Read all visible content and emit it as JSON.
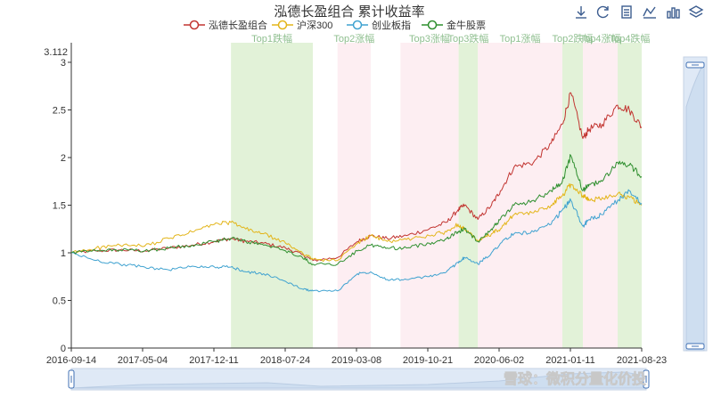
{
  "toolbox": {
    "icons": [
      "download-icon",
      "refresh-icon",
      "data-view-icon",
      "line-type-icon",
      "bar-type-icon",
      "stack-icon"
    ]
  },
  "watermark": "雪球：微积分量化价投",
  "chart_data": {
    "type": "line",
    "title": "泓德长盈组合 累计收益率",
    "legend_placement": "top-center",
    "legend": [
      "泓德长盈组合",
      "沪深300",
      "创业板指",
      "金牛股票"
    ],
    "xlabel": "",
    "ylabel": "",
    "x_range": [
      "2016-09-14",
      "2021-08-23"
    ],
    "x_tick_labels": [
      "2016-09-14",
      "2017-05-04",
      "2017-12-11",
      "2018-07-24",
      "2019-03-08",
      "2019-10-21",
      "2020-06-02",
      "2021-01-11",
      "2021-08-23"
    ],
    "ylim": [
      0,
      3.112
    ],
    "y_ticks": [
      0,
      0.5,
      1,
      1.5,
      2,
      2.5,
      3
    ],
    "y_max_label": "3.112",
    "grid": false,
    "bands": [
      {
        "label": "Top1跌幅",
        "start": "2018-02-01",
        "end": "2018-10-18",
        "color": "#e2f2d8"
      },
      {
        "label": "Top2涨幅",
        "start": "2019-01-04",
        "end": "2019-04-19",
        "color": "#fdeef2"
      },
      {
        "label": "Top3涨幅",
        "start": "2019-07-22",
        "end": "2020-01-22",
        "color": "#fdeef2"
      },
      {
        "label": "Top3跌幅",
        "start": "2020-01-22",
        "end": "2020-03-23",
        "color": "#e2f2d8"
      },
      {
        "label": "Top1涨幅",
        "start": "2020-03-23",
        "end": "2020-12-15",
        "color": "#fdeef2"
      },
      {
        "label": "Top2跌幅",
        "start": "2020-12-15",
        "end": "2021-02-18",
        "color": "#e2f2d8"
      },
      {
        "label": "Top4涨幅",
        "start": "2021-02-18",
        "end": "2021-06-08",
        "color": "#fdeef2"
      },
      {
        "label": "Top4跌幅",
        "start": "2021-06-08",
        "end": "2021-08-23",
        "color": "#e2f2d8"
      }
    ],
    "x": [
      "2016-09-14",
      "2016-12-01",
      "2017-02-15",
      "2017-05-04",
      "2017-07-20",
      "2017-10-01",
      "2017-12-11",
      "2018-02-01",
      "2018-03-20",
      "2018-05-15",
      "2018-07-24",
      "2018-09-15",
      "2018-10-18",
      "2019-01-04",
      "2019-03-08",
      "2019-04-19",
      "2019-06-10",
      "2019-08-10",
      "2019-10-21",
      "2019-12-15",
      "2020-01-20",
      "2020-02-10",
      "2020-03-23",
      "2020-05-05",
      "2020-06-02",
      "2020-07-15",
      "2020-09-15",
      "2020-11-10",
      "2020-12-15",
      "2021-01-11",
      "2021-02-18",
      "2021-03-10",
      "2021-04-20",
      "2021-06-08",
      "2021-07-15",
      "2021-08-23"
    ],
    "series": [
      {
        "name": "泓德长盈组合",
        "color": "#c23531",
        "values": [
          1.0,
          1.02,
          1.03,
          1.02,
          1.05,
          1.08,
          1.12,
          1.15,
          1.12,
          1.1,
          1.05,
          0.98,
          0.92,
          0.95,
          1.12,
          1.18,
          1.15,
          1.18,
          1.25,
          1.32,
          1.45,
          1.5,
          1.35,
          1.5,
          1.65,
          1.9,
          1.95,
          2.15,
          2.35,
          2.68,
          2.2,
          2.3,
          2.35,
          2.55,
          2.5,
          2.32
        ]
      },
      {
        "name": "沪深300",
        "color": "#e3b51a",
        "values": [
          1.0,
          1.05,
          1.08,
          1.07,
          1.15,
          1.22,
          1.3,
          1.32,
          1.25,
          1.2,
          1.1,
          1.0,
          0.93,
          0.92,
          1.1,
          1.18,
          1.12,
          1.14,
          1.18,
          1.22,
          1.3,
          1.25,
          1.12,
          1.2,
          1.25,
          1.4,
          1.42,
          1.5,
          1.6,
          1.72,
          1.6,
          1.55,
          1.58,
          1.62,
          1.58,
          1.5
        ]
      },
      {
        "name": "创业板指",
        "color": "#3fa2d0",
        "values": [
          1.0,
          0.92,
          0.88,
          0.85,
          0.82,
          0.86,
          0.85,
          0.85,
          0.8,
          0.78,
          0.7,
          0.62,
          0.6,
          0.6,
          0.78,
          0.8,
          0.72,
          0.72,
          0.75,
          0.8,
          0.9,
          0.95,
          0.88,
          1.0,
          1.1,
          1.2,
          1.22,
          1.3,
          1.45,
          1.55,
          1.28,
          1.35,
          1.4,
          1.55,
          1.65,
          1.52
        ]
      },
      {
        "name": "金牛股票",
        "color": "#2f8f2f",
        "values": [
          1.0,
          1.02,
          1.03,
          1.02,
          1.05,
          1.08,
          1.12,
          1.15,
          1.12,
          1.08,
          1.02,
          0.95,
          0.88,
          0.88,
          1.02,
          1.08,
          1.05,
          1.05,
          1.1,
          1.15,
          1.22,
          1.25,
          1.12,
          1.25,
          1.35,
          1.5,
          1.55,
          1.65,
          1.75,
          2.02,
          1.65,
          1.72,
          1.75,
          1.95,
          1.92,
          1.8
        ]
      }
    ]
  }
}
